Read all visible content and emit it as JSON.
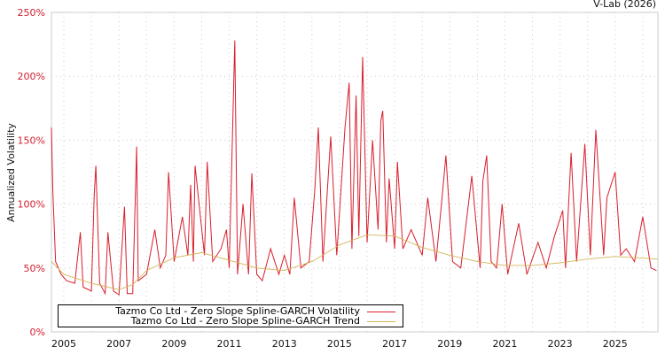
{
  "credit": "V-Lab (2026)",
  "chart_data": {
    "type": "line",
    "title": "",
    "xlabel": "",
    "ylabel": "Annualized Volatility",
    "xlim": [
      2004.55,
      2026.55
    ],
    "ylim": [
      0,
      250
    ],
    "grid": true,
    "legend_placement": "bottom-left",
    "y_ticks": [
      0,
      50,
      100,
      150,
      200,
      250
    ],
    "y_tick_labels": [
      "0%",
      "50%",
      "100%",
      "150%",
      "200%",
      "250%"
    ],
    "x_ticks": [
      2005,
      2007,
      2009,
      2011,
      2013,
      2015,
      2017,
      2019,
      2021,
      2023,
      2025
    ],
    "x_tick_labels": [
      "2005",
      "2007",
      "2009",
      "2011",
      "2013",
      "2015",
      "2017",
      "2019",
      "2021",
      "2023",
      "2025"
    ],
    "colors": {
      "volatility": "#d81e2c",
      "trend": "#d4b65a",
      "ytick": "#d0202e"
    },
    "series": [
      {
        "name": "Tazmo Co Ltd - Zero Slope Spline-GARCH Volatility",
        "x": [
          2004.55,
          2004.6,
          2004.7,
          2004.9,
          2005.1,
          2005.4,
          2005.6,
          2005.7,
          2006.0,
          2006.1,
          2006.16,
          2006.3,
          2006.5,
          2006.6,
          2006.8,
          2007.0,
          2007.2,
          2007.3,
          2007.5,
          2007.64,
          2007.7,
          2008.0,
          2008.3,
          2008.5,
          2008.7,
          2008.8,
          2009.0,
          2009.3,
          2009.5,
          2009.6,
          2009.7,
          2009.76,
          2010.1,
          2010.2,
          2010.4,
          2010.7,
          2010.9,
          2011.0,
          2011.2,
          2011.3,
          2011.5,
          2011.7,
          2011.82,
          2012.0,
          2012.2,
          2012.5,
          2012.8,
          2013.0,
          2013.2,
          2013.36,
          2013.6,
          2013.9,
          2014.1,
          2014.23,
          2014.4,
          2014.68,
          2014.9,
          2015.2,
          2015.35,
          2015.45,
          2015.6,
          2015.7,
          2015.84,
          2016.0,
          2016.2,
          2016.4,
          2016.5,
          2016.57,
          2016.7,
          2016.8,
          2017.0,
          2017.1,
          2017.3,
          2017.6,
          2018.0,
          2018.2,
          2018.5,
          2018.7,
          2018.86,
          2019.1,
          2019.4,
          2019.8,
          2020.1,
          2020.2,
          2020.34,
          2020.5,
          2020.7,
          2020.9,
          2021.1,
          2021.5,
          2021.8,
          2022.2,
          2022.5,
          2022.8,
          2023.1,
          2023.2,
          2023.4,
          2023.6,
          2023.9,
          2024.1,
          2024.3,
          2024.58,
          2024.7,
          2025.0,
          2025.2,
          2025.4,
          2025.7,
          2026.0,
          2026.3,
          2026.5
        ],
        "y": [
          160,
          110,
          55,
          45,
          40,
          38,
          78,
          35,
          32,
          106,
          130,
          38,
          30,
          78,
          32,
          29,
          98,
          30,
          30,
          145,
          40,
          45,
          80,
          50,
          60,
          125,
          55,
          90,
          60,
          115,
          55,
          130,
          60,
          133,
          55,
          65,
          80,
          50,
          228,
          45,
          100,
          45,
          124,
          45,
          40,
          65,
          45,
          60,
          45,
          105,
          50,
          55,
          110,
          160,
          55,
          153,
          60,
          160,
          195,
          65,
          185,
          75,
          215,
          70,
          150,
          80,
          165,
          173,
          70,
          120,
          65,
          133,
          65,
          80,
          60,
          105,
          55,
          100,
          138,
          55,
          50,
          122,
          50,
          118,
          138,
          55,
          50,
          100,
          45,
          85,
          45,
          70,
          50,
          75,
          95,
          50,
          140,
          55,
          147,
          60,
          158,
          60,
          105,
          125,
          60,
          65,
          55,
          90,
          50,
          48
        ]
      },
      {
        "name": "Tazmo Co Ltd - Zero Slope Spline-GARCH Trend",
        "x": [
          2004.55,
          2005,
          2006,
          2007,
          2007.5,
          2008,
          2009,
          2010,
          2011,
          2012,
          2013,
          2014,
          2015,
          2016,
          2017,
          2018,
          2019,
          2020,
          2021,
          2022,
          2023,
          2024,
          2025,
          2026.55
        ],
        "y": [
          55,
          45,
          38,
          33,
          37,
          48,
          58,
          62,
          56,
          50,
          48,
          55,
          68,
          76,
          75,
          66,
          60,
          55,
          52,
          52,
          54,
          57,
          59,
          57
        ]
      }
    ]
  }
}
